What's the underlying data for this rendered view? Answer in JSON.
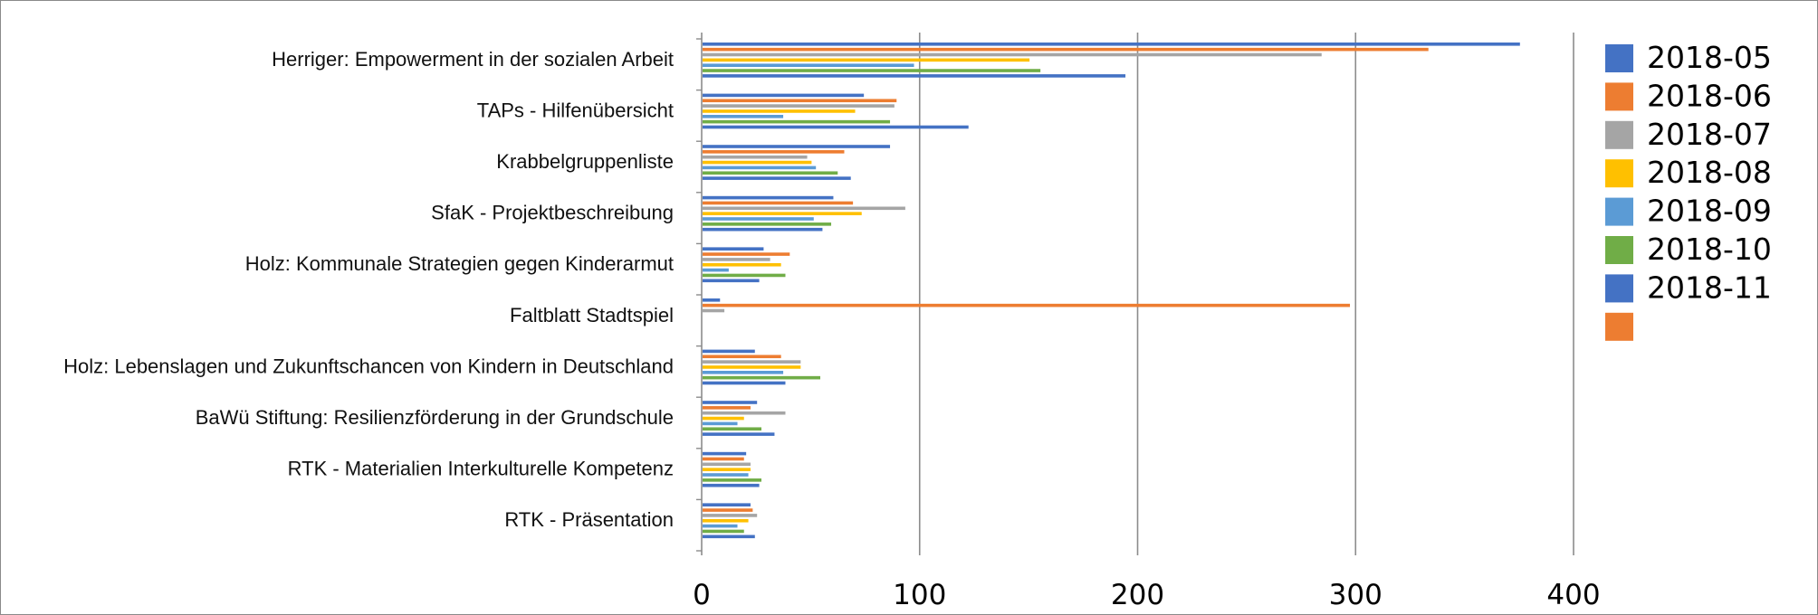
{
  "chart_data": {
    "type": "bar",
    "orientation": "horizontal",
    "title": "",
    "xlabel": "",
    "ylabel": "",
    "xlim": [
      0,
      400
    ],
    "xticks": [
      0,
      100,
      200,
      300,
      400
    ],
    "grid": "vertical",
    "legend_position": "right",
    "categories": [
      "Herriger: Empowerment in der sozialen Arbeit",
      "TAPs - Hilfenübersicht",
      "Krabbelgruppenliste",
      "SfaK - Projektbeschreibung",
      "Holz: Kommunale Strategien gegen Kinderarmut",
      "Faltblatt Stadtspiel",
      "Holz: Lebenslagen und Zukunftschancen von Kindern in Deutschland",
      "BaWü Stiftung: Resilienzförderung in der Grundschule",
      "RTK - Materialien Interkulturelle Kompetenz",
      "RTK - Präsentation"
    ],
    "series": [
      {
        "name": "2018-05",
        "color": "#4472C4",
        "values": [
          375,
          74,
          86,
          60,
          28,
          8,
          24,
          25,
          20,
          22
        ]
      },
      {
        "name": "2018-06",
        "color": "#ED7D31",
        "values": [
          333,
          89,
          65,
          69,
          40,
          297,
          36,
          22,
          19,
          23
        ]
      },
      {
        "name": "2018-07",
        "color": "#A5A5A5",
        "values": [
          284,
          88,
          48,
          93,
          31,
          10,
          45,
          38,
          22,
          25
        ]
      },
      {
        "name": "2018-08",
        "color": "#FFC000",
        "values": [
          150,
          70,
          50,
          73,
          36,
          0,
          45,
          19,
          22,
          21
        ]
      },
      {
        "name": "2018-09",
        "color": "#5B9BD5",
        "values": [
          97,
          37,
          52,
          51,
          12,
          0,
          37,
          16,
          21,
          16
        ]
      },
      {
        "name": "2018-10",
        "color": "#70AD47",
        "values": [
          155,
          86,
          62,
          59,
          38,
          0,
          54,
          27,
          27,
          19
        ]
      },
      {
        "name": "2018-11",
        "color": "#4472C4",
        "values": [
          194,
          122,
          68,
          55,
          26,
          0,
          38,
          33,
          26,
          24
        ]
      },
      {
        "color": "#ED7D31",
        "values": [
          0,
          0,
          0,
          0,
          0,
          0,
          0,
          0,
          0,
          0
        ]
      }
    ]
  }
}
